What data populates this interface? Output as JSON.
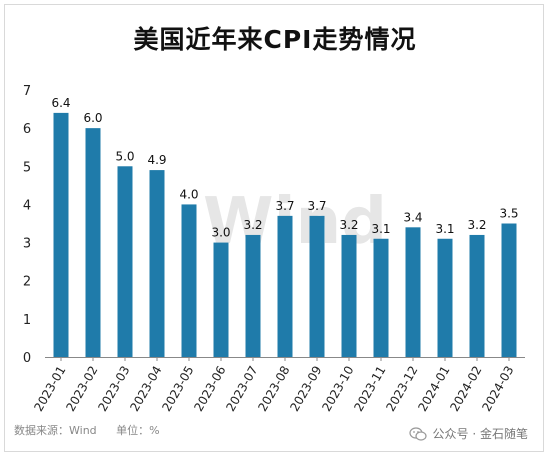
{
  "title": "美国近年来CPI走势情况",
  "watermark": "Wind",
  "footer": {
    "source": "数据来源：Wind",
    "unit": "单位：%",
    "account": "公众号 · 金石随笔"
  },
  "colors": {
    "bar": "#1f7baa",
    "axis": "#888888",
    "watermark": "#e6e6e6"
  },
  "chart_data": {
    "type": "bar",
    "title": "美国近年来CPI走势情况",
    "xlabel": "",
    "ylabel": "",
    "categories": [
      "2023-01",
      "2023-02",
      "2023-03",
      "2023-04",
      "2023-05",
      "2023-06",
      "2023-07",
      "2023-08",
      "2023-09",
      "2023-10",
      "2023-11",
      "2023-12",
      "2024-01",
      "2024-02",
      "2024-03"
    ],
    "values": [
      6.4,
      6.0,
      5.0,
      4.9,
      4.0,
      3.0,
      3.2,
      3.7,
      3.7,
      3.2,
      3.1,
      3.4,
      3.1,
      3.2,
      3.5
    ],
    "value_labels": [
      "6.4",
      "6.0",
      "5.0",
      "4.9",
      "4.0",
      "3.0",
      "3.2",
      "3.7",
      "3.7",
      "3.2",
      "3.1",
      "3.4",
      "3.1",
      "3.2",
      "3.5"
    ],
    "ylim": [
      0,
      7
    ],
    "yticks": [
      0,
      1,
      2,
      3,
      4,
      5,
      6,
      7
    ],
    "grid": false,
    "legend": "none"
  }
}
